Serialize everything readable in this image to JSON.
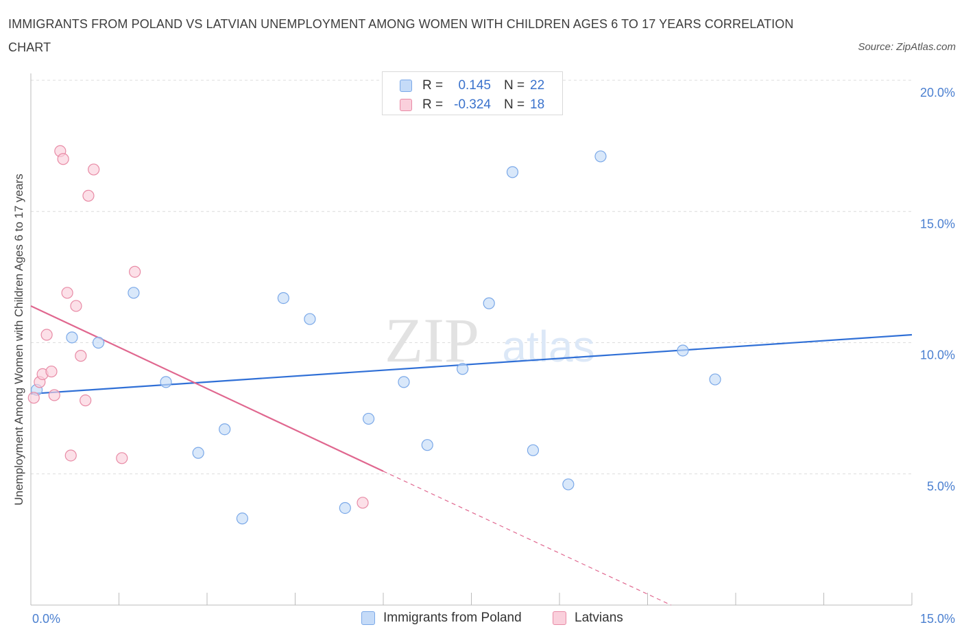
{
  "title": "IMMIGRANTS FROM POLAND VS LATVIAN UNEMPLOYMENT AMONG WOMEN WITH CHILDREN AGES 6 TO 17 YEARS CORRELATION CHART",
  "source": "Source: ZipAtlas.com",
  "watermark": {
    "zip": "ZIP",
    "atlas": "atlas"
  },
  "legend": {
    "rows": [
      {
        "r_label": "R =",
        "r_value": "0.145",
        "n_label": "N =",
        "n_value": "22",
        "color": "#a8c8f5"
      },
      {
        "r_label": "R =",
        "r_value": "-0.324",
        "n_label": "N =",
        "n_value": "18",
        "color": "#f5b8c8"
      }
    ]
  },
  "bottom_legend": [
    {
      "label": "Immigrants from Poland",
      "color": "#a8c8f5"
    },
    {
      "label": "Latvians",
      "color": "#f5b8c8"
    }
  ],
  "chart_data": {
    "type": "scatter",
    "title": "IMMIGRANTS FROM POLAND VS LATVIAN UNEMPLOYMENT AMONG WOMEN WITH CHILDREN AGES 6 TO 17 YEARS CORRELATION CHART",
    "xlabel": "",
    "ylabel": "Unemployment Among Women with Children Ages 6 to 17 years",
    "xlim": [
      0,
      15
    ],
    "ylim": [
      0,
      20
    ],
    "x_tick_labels": [
      {
        "value": 0,
        "label": "0.0%"
      },
      {
        "value": 15,
        "label": "15.0%"
      }
    ],
    "y_tick_labels": [
      {
        "value": 5,
        "label": "5.0%"
      },
      {
        "value": 10,
        "label": "10.0%"
      },
      {
        "value": 15,
        "label": "15.0%"
      },
      {
        "value": 20,
        "label": "20.0%"
      }
    ],
    "grid": true,
    "series": [
      {
        "name": "Immigrants from Poland",
        "color": "#a8c8f5",
        "stroke": "#7aa8e8",
        "points": [
          [
            0.1,
            8.2
          ],
          [
            0.7,
            10.2
          ],
          [
            1.15,
            10.0
          ],
          [
            1.75,
            11.9
          ],
          [
            2.3,
            8.5
          ],
          [
            2.85,
            5.8
          ],
          [
            3.3,
            6.7
          ],
          [
            3.6,
            3.3
          ],
          [
            4.3,
            11.7
          ],
          [
            4.75,
            10.9
          ],
          [
            5.35,
            3.7
          ],
          [
            5.75,
            7.1
          ],
          [
            6.35,
            8.5
          ],
          [
            6.75,
            6.1
          ],
          [
            7.35,
            9.0
          ],
          [
            7.8,
            11.5
          ],
          [
            8.2,
            16.5
          ],
          [
            8.55,
            5.9
          ],
          [
            9.15,
            4.6
          ],
          [
            9.7,
            17.1
          ],
          [
            11.1,
            9.7
          ],
          [
            11.65,
            8.6
          ]
        ],
        "trend": {
          "x0": 0,
          "y0": 8.05,
          "x1": 15,
          "y1": 10.3
        }
      },
      {
        "name": "Latvians",
        "color": "#f5b8c8",
        "stroke": "#e88aa5",
        "points": [
          [
            0.05,
            7.9
          ],
          [
            0.15,
            8.5
          ],
          [
            0.2,
            8.8
          ],
          [
            0.27,
            10.3
          ],
          [
            0.35,
            8.9
          ],
          [
            0.4,
            8.0
          ],
          [
            0.5,
            17.3
          ],
          [
            0.55,
            17.0
          ],
          [
            0.62,
            11.9
          ],
          [
            0.68,
            5.7
          ],
          [
            0.77,
            11.4
          ],
          [
            0.85,
            9.5
          ],
          [
            0.93,
            7.8
          ],
          [
            0.98,
            15.6
          ],
          [
            1.07,
            16.6
          ],
          [
            1.55,
            5.6
          ],
          [
            1.77,
            12.7
          ],
          [
            5.65,
            3.9
          ]
        ],
        "trend": {
          "x0": 0,
          "y0": 11.4,
          "x1": 6.0,
          "y1": 5.1,
          "dash_to_x": 10.9,
          "dash_to_y": 0
        }
      }
    ]
  }
}
